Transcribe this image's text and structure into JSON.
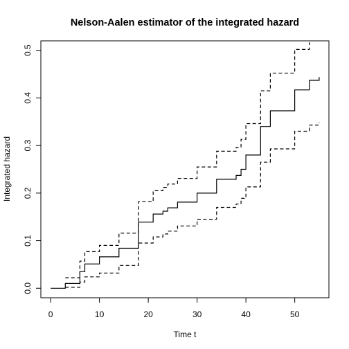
{
  "chart_data": {
    "type": "line",
    "title": "Nelson-Aalen estimator of the integrated hazard",
    "xlabel": "Time t",
    "ylabel": "Integrated hazard",
    "xlim": [
      -2,
      57
    ],
    "ylim": [
      -0.02,
      0.52
    ],
    "x_ticks": [
      0,
      10,
      20,
      30,
      40,
      50
    ],
    "y_ticks": [
      0.0,
      0.1,
      0.2,
      0.3,
      0.4,
      0.5
    ],
    "x_tick_labels": [
      "0",
      "10",
      "20",
      "30",
      "40",
      "50"
    ],
    "y_tick_labels": [
      "0.0",
      "0.1",
      "0.2",
      "0.3",
      "0.4",
      "0.5"
    ],
    "grid": false,
    "legend": "none",
    "step": true,
    "series": [
      {
        "role": "estimate",
        "style": "solid",
        "color": "#000000",
        "x": [
          0,
          3,
          6,
          7,
          10,
          14,
          18,
          21,
          23,
          24,
          26,
          30,
          34,
          38,
          39,
          40,
          43,
          45,
          50,
          53,
          55
        ],
        "y": [
          0.0,
          0.01,
          0.035,
          0.051,
          0.066,
          0.084,
          0.139,
          0.156,
          0.162,
          0.169,
          0.181,
          0.2,
          0.229,
          0.237,
          0.25,
          0.28,
          0.34,
          0.373,
          0.417,
          0.437,
          0.444
        ]
      },
      {
        "role": "upper",
        "style": "dashed",
        "color": "#000000",
        "x": [
          3,
          6,
          7,
          10,
          14,
          18,
          21,
          23,
          24,
          26,
          30,
          34,
          38,
          39,
          40,
          43,
          45,
          50,
          53
        ],
        "y": [
          0.022,
          0.057,
          0.077,
          0.09,
          0.116,
          0.182,
          0.205,
          0.212,
          0.219,
          0.231,
          0.255,
          0.288,
          0.296,
          0.313,
          0.346,
          0.415,
          0.452,
          0.502,
          0.517
        ]
      },
      {
        "role": "lower",
        "style": "dashed",
        "color": "#000000",
        "x": [
          3,
          6,
          7,
          10,
          14,
          18,
          21,
          23,
          24,
          26,
          30,
          34,
          38,
          39,
          40,
          43,
          45,
          50,
          53,
          55
        ],
        "y": [
          0.002,
          0.013,
          0.024,
          0.032,
          0.048,
          0.095,
          0.108,
          0.114,
          0.12,
          0.131,
          0.145,
          0.17,
          0.177,
          0.189,
          0.213,
          0.265,
          0.293,
          0.33,
          0.343,
          0.348
        ]
      }
    ]
  }
}
